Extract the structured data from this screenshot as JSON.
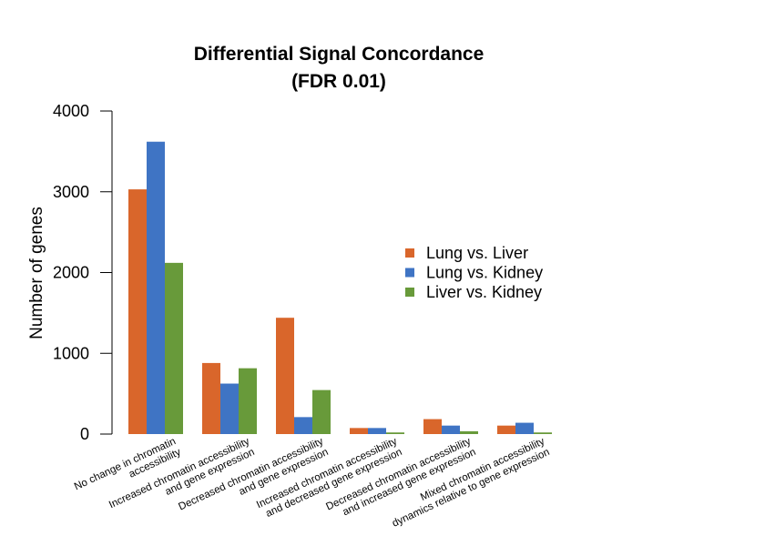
{
  "chart_data": {
    "type": "bar",
    "title": [
      "Differential Signal Concordance",
      "(FDR 0.01)"
    ],
    "xlabel": "",
    "ylabel": "Number of genes",
    "ylim": [
      0,
      4000
    ],
    "yticks": [
      0,
      1000,
      2000,
      3000,
      4000
    ],
    "grid": false,
    "legend_position": "right",
    "categories": [
      [
        "No change in chromatin",
        "accessibility"
      ],
      [
        "Increased chromatin accessibility",
        "and gene expression"
      ],
      [
        "Decreased chromatin accessibility",
        "and gene expression"
      ],
      [
        "Increased chromatin accessibility",
        "and decreased gene expression"
      ],
      [
        "Decreased chromatin accessibility",
        "and increased gene expression"
      ],
      [
        "Mixed chromatin accessibility",
        "dynamics relative to gene expression"
      ]
    ],
    "series": [
      {
        "name": "Lung vs. Liver",
        "color": "#d9662b",
        "values": [
          3030,
          880,
          1440,
          75,
          185,
          105
        ]
      },
      {
        "name": "Lung vs. Kidney",
        "color": "#3f74c4",
        "values": [
          3620,
          625,
          210,
          75,
          105,
          140
        ]
      },
      {
        "name": "Liver vs. Kidney",
        "color": "#689a3a",
        "values": [
          2120,
          815,
          545,
          20,
          35,
          20
        ]
      }
    ]
  }
}
